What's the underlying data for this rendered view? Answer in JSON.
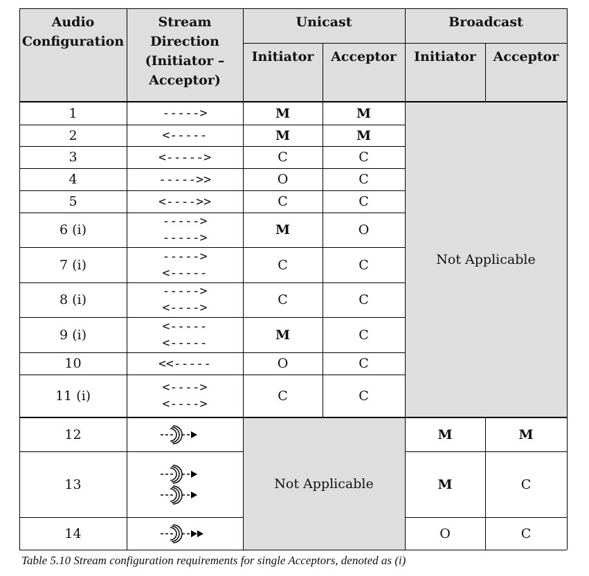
{
  "header": {
    "audio_configuration": "Audio Configuration",
    "stream_direction": "Stream Direction (Initiator – Acceptor)",
    "unicast": "Unicast",
    "broadcast": "Broadcast",
    "initiator": "Initiator",
    "acceptor": "Acceptor"
  },
  "unicast_rows": [
    {
      "config": "1",
      "dir": [
        "----->"
      ],
      "ui": "M",
      "ua": "M"
    },
    {
      "config": "2",
      "dir": [
        "<-----"
      ],
      "ui": "M",
      "ua": "M"
    },
    {
      "config": "3",
      "dir": [
        "<----->"
      ],
      "ui": "C",
      "ua": "C"
    },
    {
      "config": "4",
      "dir": [
        "----->>"
      ],
      "ui": "O",
      "ua": "C"
    },
    {
      "config": "5",
      "dir": [
        "<---->>"
      ],
      "ui": "C",
      "ua": "C"
    },
    {
      "config": "6 (i)",
      "dir": [
        "----->",
        "----->"
      ],
      "ui": "M",
      "ua": "O"
    },
    {
      "config": "7 (i)",
      "dir": [
        "----->",
        "<-----"
      ],
      "ui": "C",
      "ua": "C"
    },
    {
      "config": "8 (i)",
      "dir": [
        "----->",
        "<---->"
      ],
      "ui": "C",
      "ua": "C"
    },
    {
      "config": "9 (i)",
      "dir": [
        "<-----",
        "<-----"
      ],
      "ui": "M",
      "ua": "C"
    },
    {
      "config": "10",
      "dir": [
        "<<-----"
      ],
      "ui": "O",
      "ua": "C"
    },
    {
      "config": "11 (i)",
      "dir": [
        "<---->",
        "<---->"
      ],
      "ui": "C",
      "ua": "C"
    }
  ],
  "broadcast_rows": [
    {
      "config": "12",
      "bi": "M",
      "ba": "M",
      "icon": "broadcast-single-icon"
    },
    {
      "config": "13",
      "bi": "M",
      "ba": "C",
      "icon": "broadcast-double-icon"
    },
    {
      "config": "14",
      "bi": "O",
      "ba": "C",
      "icon": "broadcast-double-arrowhead-icon"
    }
  ],
  "not_applicable": "Not Applicable",
  "caption": "Table 5.10  Stream configuration requirements for single Acceptors, denoted as (i)",
  "colors": {
    "shade": "#dedede",
    "line": "#000000"
  }
}
